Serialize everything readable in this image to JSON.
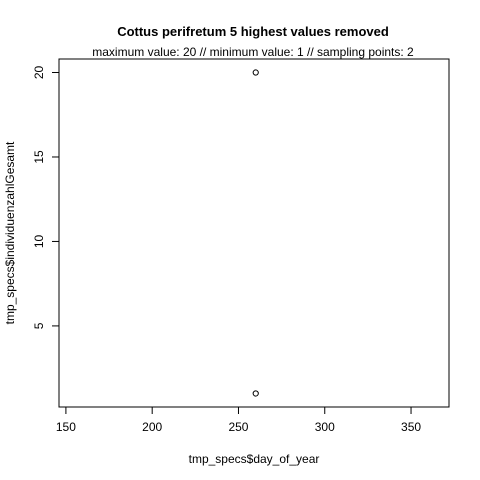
{
  "chart_data": {
    "type": "scatter",
    "title": "Cottus perifretum  5 highest values removed",
    "subtitle": "maximum value: 20  //  minimum value: 1  // sampling points: 2",
    "xlabel": "tmp_specs$day_of_year",
    "ylabel": "tmp_specs$individuenzahlGesamt",
    "xlim": [
      146,
      372
    ],
    "ylim": [
      0.2,
      20.8
    ],
    "xticks": [
      150,
      200,
      250,
      300,
      350
    ],
    "yticks": [
      5,
      10,
      15,
      20
    ],
    "points": [
      {
        "x": 260,
        "y": 20
      },
      {
        "x": 260,
        "y": 1
      }
    ],
    "grid": false,
    "legend": "none",
    "point_style": "open-circle",
    "colors": {
      "points": "#000000",
      "axes": "#000000",
      "background": "#ffffff"
    }
  }
}
